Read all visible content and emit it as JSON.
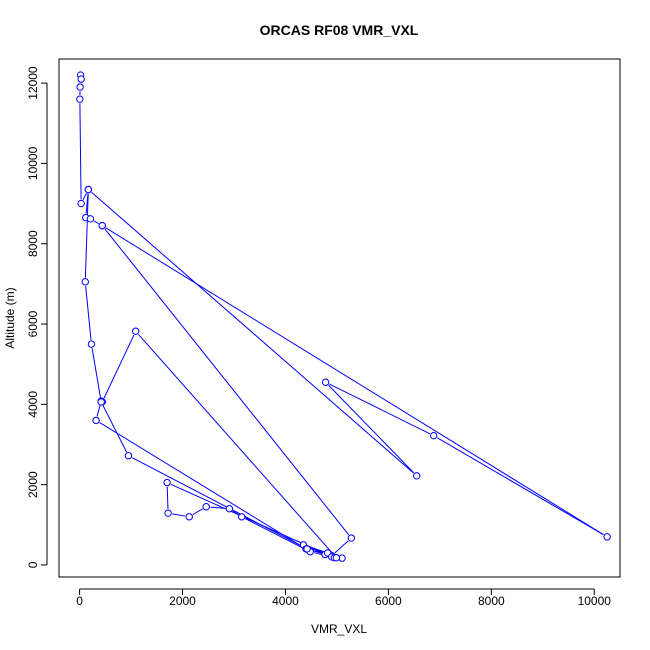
{
  "chart_data": {
    "type": "line",
    "title": "ORCAS RF08 VMR_VXL",
    "xlabel": "VMR_VXL",
    "ylabel": "Altitude (m)",
    "xlim": [
      -400,
      10500
    ],
    "ylim": [
      -300,
      12600
    ],
    "x_ticks": [
      0,
      2000,
      4000,
      6000,
      8000,
      10000
    ],
    "y_ticks": [
      0,
      2000,
      4000,
      6000,
      8000,
      10000,
      12000
    ],
    "grid": false,
    "legend": "none",
    "color": "#0000ff",
    "marker": "open-circle",
    "series": [
      {
        "points": [
          [
            20,
            12200
          ],
          [
            30,
            12100
          ],
          [
            10,
            11900
          ],
          [
            5,
            11600
          ],
          [
            30,
            9000
          ],
          [
            170,
            9350
          ],
          [
            120,
            8650
          ],
          [
            210,
            8620
          ],
          [
            440,
            8450
          ],
          [
            5280,
            670
          ],
          [
            4900,
            230
          ],
          [
            4770,
            260
          ],
          [
            4820,
            300
          ],
          [
            4350,
            500
          ],
          [
            4900,
            200
          ],
          [
            4480,
            330
          ],
          [
            3150,
            1200
          ],
          [
            2910,
            1400
          ],
          [
            2460,
            1450
          ],
          [
            2130,
            1200
          ],
          [
            1720,
            1290
          ],
          [
            1700,
            2050
          ],
          [
            4950,
            180
          ],
          [
            5100,
            170
          ],
          [
            4400,
            400
          ],
          [
            320,
            3600
          ],
          [
            420,
            4080
          ],
          [
            440,
            4060
          ],
          [
            1090,
            5820
          ],
          [
            4990,
            180
          ],
          [
            4420,
            400
          ],
          [
            950,
            2720
          ],
          [
            420,
            4060
          ],
          [
            230,
            5500
          ],
          [
            110,
            7050
          ],
          [
            170,
            9350
          ],
          [
            6550,
            2220
          ],
          [
            4780,
            4550
          ],
          [
            6880,
            3220
          ],
          [
            10250,
            700
          ],
          [
            440,
            8450
          ]
        ]
      }
    ]
  }
}
